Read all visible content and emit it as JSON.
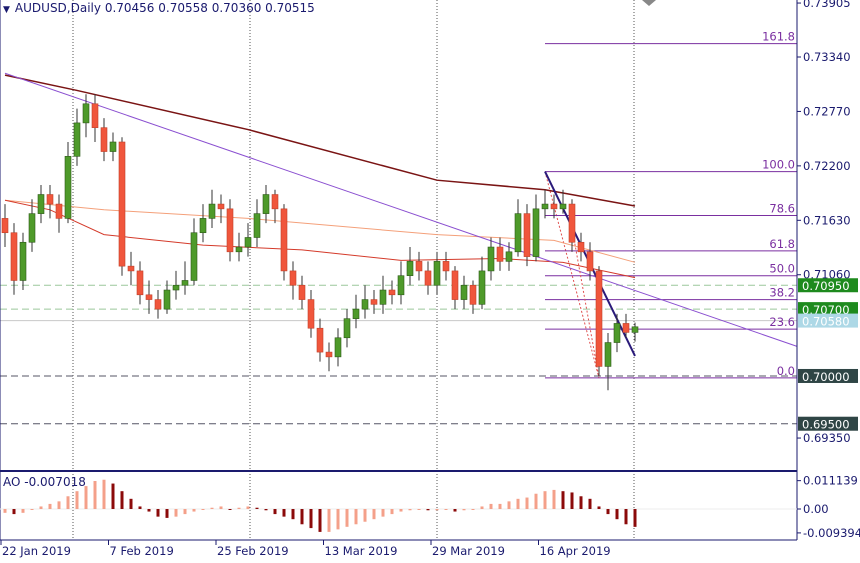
{
  "header": {
    "symbol_timeframe": "AUDUSD,Daily",
    "open": "0.70456",
    "high": "0.70558",
    "low": "0.70360",
    "close": "0.70515"
  },
  "indicator": {
    "label": "AO -0.007018"
  },
  "colors": {
    "bull": "#4e9a2a",
    "bear": "#f0563c",
    "ma_slow": "#7a1414",
    "ma_mid": "#f4a07a",
    "ma_fast": "#d43a2a",
    "trend": "#8a4fd0",
    "fib": "#7a2fa0",
    "ao_up": "#f4a08a",
    "ao_down": "#8b0a0a"
  },
  "chart_data": {
    "type": "candlestick",
    "price_axis_labels": [
      "0.73905",
      "0.73340",
      "0.72770",
      "0.72200",
      "0.71630",
      "0.71060",
      "0.69350"
    ],
    "price_level_boxes": [
      {
        "value": "0.70950",
        "color": "#1e8a1e"
      },
      {
        "value": "0.70700",
        "color": "#1e8a1e"
      },
      {
        "value": "0.70580",
        "color": "#add8e6"
      },
      {
        "value": "0.70000",
        "color": "#2f4545"
      },
      {
        "value": "0.69500",
        "color": "#2f4545"
      }
    ],
    "date_labels": [
      "22 Jan 2019",
      "7 Feb 2019",
      "25 Feb 2019",
      "13 Mar 2019",
      "29 Mar 2019",
      "16 Apr 2019"
    ],
    "ohlc": [
      [
        0.7165,
        0.718,
        0.7135,
        0.715
      ],
      [
        0.715,
        0.716,
        0.7085,
        0.71
      ],
      [
        0.71,
        0.715,
        0.709,
        0.714
      ],
      [
        0.714,
        0.7185,
        0.713,
        0.717
      ],
      [
        0.717,
        0.72,
        0.716,
        0.719
      ],
      [
        0.719,
        0.72,
        0.7165,
        0.718
      ],
      [
        0.718,
        0.719,
        0.715,
        0.7165
      ],
      [
        0.7165,
        0.7245,
        0.716,
        0.723
      ],
      [
        0.723,
        0.728,
        0.722,
        0.7265
      ],
      [
        0.7265,
        0.7295,
        0.725,
        0.7285
      ],
      [
        0.7285,
        0.7295,
        0.7245,
        0.726
      ],
      [
        0.726,
        0.727,
        0.7225,
        0.7235
      ],
      [
        0.7235,
        0.7255,
        0.7225,
        0.7245
      ],
      [
        0.7245,
        0.725,
        0.7105,
        0.7115
      ],
      [
        0.7115,
        0.713,
        0.7095,
        0.711
      ],
      [
        0.711,
        0.712,
        0.7075,
        0.7085
      ],
      [
        0.7085,
        0.71,
        0.7065,
        0.708
      ],
      [
        0.708,
        0.709,
        0.706,
        0.707
      ],
      [
        0.707,
        0.71,
        0.7065,
        0.709
      ],
      [
        0.709,
        0.711,
        0.708,
        0.7095
      ],
      [
        0.7095,
        0.712,
        0.7085,
        0.71
      ],
      [
        0.71,
        0.7165,
        0.7095,
        0.715
      ],
      [
        0.715,
        0.718,
        0.714,
        0.7165
      ],
      [
        0.7165,
        0.7195,
        0.7155,
        0.718
      ],
      [
        0.718,
        0.719,
        0.716,
        0.7175
      ],
      [
        0.7175,
        0.7185,
        0.712,
        0.713
      ],
      [
        0.713,
        0.715,
        0.712,
        0.7135
      ],
      [
        0.7135,
        0.716,
        0.7125,
        0.7145
      ],
      [
        0.7145,
        0.7185,
        0.7135,
        0.717
      ],
      [
        0.717,
        0.72,
        0.716,
        0.719
      ],
      [
        0.719,
        0.7195,
        0.716,
        0.7175
      ],
      [
        0.7175,
        0.718,
        0.71,
        0.711
      ],
      [
        0.711,
        0.712,
        0.708,
        0.7095
      ],
      [
        0.7095,
        0.7105,
        0.707,
        0.708
      ],
      [
        0.708,
        0.709,
        0.704,
        0.705
      ],
      [
        0.705,
        0.706,
        0.7015,
        0.7025
      ],
      [
        0.7025,
        0.7035,
        0.7005,
        0.702
      ],
      [
        0.702,
        0.705,
        0.701,
        0.704
      ],
      [
        0.704,
        0.707,
        0.703,
        0.706
      ],
      [
        0.706,
        0.7085,
        0.705,
        0.707
      ],
      [
        0.707,
        0.7095,
        0.706,
        0.708
      ],
      [
        0.708,
        0.709,
        0.7065,
        0.7075
      ],
      [
        0.7075,
        0.7105,
        0.7065,
        0.709
      ],
      [
        0.709,
        0.71,
        0.7075,
        0.7085
      ],
      [
        0.7085,
        0.712,
        0.7075,
        0.7105
      ],
      [
        0.7105,
        0.7135,
        0.7095,
        0.712
      ],
      [
        0.712,
        0.713,
        0.71,
        0.711
      ],
      [
        0.711,
        0.712,
        0.7085,
        0.7095
      ],
      [
        0.7095,
        0.713,
        0.7085,
        0.712
      ],
      [
        0.712,
        0.713,
        0.71,
        0.711
      ],
      [
        0.711,
        0.7115,
        0.707,
        0.708
      ],
      [
        0.708,
        0.7105,
        0.707,
        0.7095
      ],
      [
        0.7095,
        0.71,
        0.7065,
        0.7075
      ],
      [
        0.7075,
        0.7125,
        0.707,
        0.711
      ],
      [
        0.711,
        0.7145,
        0.71,
        0.7135
      ],
      [
        0.7135,
        0.7145,
        0.711,
        0.712
      ],
      [
        0.712,
        0.714,
        0.711,
        0.713
      ],
      [
        0.713,
        0.7185,
        0.7125,
        0.717
      ],
      [
        0.717,
        0.718,
        0.7115,
        0.7125
      ],
      [
        0.7125,
        0.719,
        0.712,
        0.7175
      ],
      [
        0.7175,
        0.7195,
        0.7165,
        0.718
      ],
      [
        0.718,
        0.719,
        0.7165,
        0.7175
      ],
      [
        0.7175,
        0.7195,
        0.717,
        0.718
      ],
      [
        0.718,
        0.7185,
        0.713,
        0.714
      ],
      [
        0.714,
        0.715,
        0.712,
        0.713
      ],
      [
        0.713,
        0.714,
        0.71,
        0.711
      ],
      [
        0.711,
        0.7115,
        0.7,
        0.701
      ],
      [
        0.701,
        0.7045,
        0.6985,
        0.7035
      ],
      [
        0.7035,
        0.7065,
        0.7025,
        0.7055
      ],
      [
        0.7055,
        0.7065,
        0.704,
        0.70456
      ],
      [
        0.70456,
        0.70558,
        0.7036,
        0.70515
      ]
    ],
    "moving_averages": [
      {
        "color_key": "ma_slow",
        "points": [
          [
            0,
            0.7315
          ],
          [
            8,
            0.7299
          ],
          [
            27,
            0.7258
          ],
          [
            48,
            0.7205
          ],
          [
            60,
            0.7195
          ],
          [
            70,
            0.7178
          ]
        ]
      },
      {
        "color_key": "ma_mid",
        "points": [
          [
            0,
            0.7184
          ],
          [
            11,
            0.7174
          ],
          [
            27,
            0.7165
          ],
          [
            48,
            0.7148
          ],
          [
            61,
            0.7142
          ],
          [
            70,
            0.7119
          ]
        ]
      },
      {
        "color_key": "ma_fast",
        "points": [
          [
            0,
            0.7184
          ],
          [
            5,
            0.7174
          ],
          [
            11,
            0.7148
          ],
          [
            22,
            0.7137
          ],
          [
            33,
            0.7132
          ],
          [
            44,
            0.7121
          ],
          [
            55,
            0.7123
          ],
          [
            62,
            0.7119
          ],
          [
            70,
            0.7103
          ]
        ]
      }
    ],
    "fibonacci": {
      "start": [
        60,
        0.7214
      ],
      "end": [
        66,
        0.6998
      ],
      "levels": [
        {
          "label": "161.8",
          "price": 0.7348
        },
        {
          "label": "100.0",
          "price": 0.7214
        },
        {
          "label": "78.6",
          "price": 0.7168
        },
        {
          "label": "61.8",
          "price": 0.7131
        },
        {
          "label": "50.0",
          "price": 0.7105
        },
        {
          "label": "38.2",
          "price": 0.708
        },
        {
          "label": "23.6",
          "price": 0.7049
        },
        {
          "label": "0.0",
          "price": 0.6998
        }
      ]
    },
    "trendlines": [
      {
        "from": [
          0,
          0.7317
        ],
        "to": [
          88,
          0.7031
        ],
        "style": "thin"
      },
      {
        "from": [
          60,
          0.7214
        ],
        "to": [
          70,
          0.7021
        ],
        "style": "bold"
      },
      {
        "from": [
          63,
          0.7155
        ],
        "to": [
          66,
          0.6998
        ],
        "style": "dotted"
      }
    ],
    "horizontal_lines": [
      {
        "price": 0.7095,
        "style": "dashed-green"
      },
      {
        "price": 0.707,
        "style": "dashed-green"
      },
      {
        "price": 0.7058,
        "style": "solid-light"
      },
      {
        "price": 0.7,
        "style": "dashed-dark"
      },
      {
        "price": 0.695,
        "style": "dashed-dark"
      }
    ],
    "ao_axis_labels": [
      "0.011139",
      "0.00",
      "-0.009394"
    ],
    "ao_values": [
      -0.0015,
      -0.002,
      -0.0015,
      0.0,
      0.001,
      0.002,
      0.003,
      0.005,
      0.007,
      0.009,
      0.011,
      0.0115,
      0.01,
      0.007,
      0.004,
      0.001,
      -0.001,
      -0.003,
      -0.0035,
      -0.003,
      -0.002,
      -0.001,
      0.0,
      0.0005,
      0.001,
      0.0,
      0.0005,
      0.001,
      0.0005,
      -0.0005,
      -0.002,
      -0.003,
      -0.004,
      -0.006,
      -0.0075,
      -0.009,
      -0.009,
      -0.008,
      -0.007,
      -0.006,
      -0.005,
      -0.004,
      -0.003,
      -0.002,
      -0.001,
      -0.0005,
      0.0,
      -0.0005,
      -0.0005,
      0.0,
      -0.001,
      -0.0005,
      0.0,
      0.001,
      0.002,
      0.002,
      0.003,
      0.004,
      0.0045,
      0.006,
      0.007,
      0.0075,
      0.007,
      0.0065,
      0.005,
      0.004,
      0.001,
      -0.002,
      -0.004,
      -0.006,
      -0.007018
    ]
  }
}
